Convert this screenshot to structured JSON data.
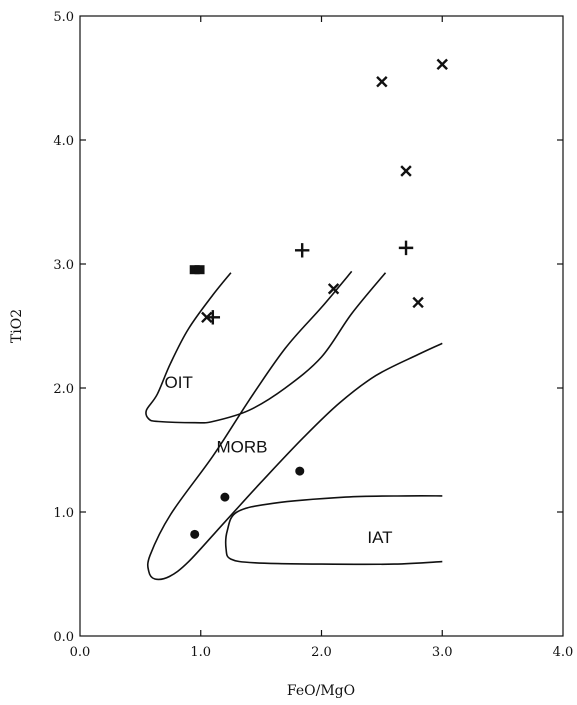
{
  "chart_data": {
    "type": "scatter",
    "title": "",
    "xlabel": "FeO/MgO",
    "ylabel": "TiO2",
    "xlim": [
      0,
      4
    ],
    "ylim": [
      0,
      5
    ],
    "x_ticks": [
      "0.0",
      "1.0",
      "2.0",
      "3.0",
      "4.0"
    ],
    "y_ticks": [
      "0.0",
      "1.0",
      "2.0",
      "3.0",
      "4.0",
      "5.0"
    ],
    "grid": false,
    "series": [
      {
        "marker": "square",
        "points": [
          [
            0.95,
            2.95
          ],
          [
            0.99,
            2.95
          ]
        ]
      },
      {
        "marker": "plus",
        "points": [
          [
            1.1,
            2.57
          ],
          [
            1.84,
            3.11
          ],
          [
            2.7,
            3.13
          ]
        ]
      },
      {
        "marker": "x",
        "points": [
          [
            1.05,
            2.57
          ],
          [
            2.1,
            2.8
          ],
          [
            2.5,
            4.47
          ],
          [
            2.7,
            3.75
          ],
          [
            2.8,
            2.69
          ],
          [
            3.0,
            4.61
          ]
        ]
      },
      {
        "marker": "circle",
        "points": [
          [
            0.95,
            0.82
          ],
          [
            1.2,
            1.12
          ],
          [
            1.82,
            1.33
          ]
        ]
      }
    ],
    "regions": [
      {
        "label": "OIT",
        "label_at": [
          0.7,
          2.0
        ],
        "outline": [
          [
            1.25,
            2.93
          ],
          [
            1.1,
            2.75
          ],
          [
            0.9,
            2.48
          ],
          [
            0.75,
            2.2
          ],
          [
            0.64,
            1.95
          ],
          [
            0.55,
            1.82
          ],
          [
            0.57,
            1.75
          ],
          [
            0.65,
            1.73
          ],
          [
            0.95,
            1.72
          ],
          [
            1.1,
            1.73
          ],
          [
            1.4,
            1.82
          ],
          [
            1.7,
            2.0
          ],
          [
            2.0,
            2.25
          ],
          [
            2.25,
            2.6
          ],
          [
            2.53,
            2.93
          ]
        ]
      },
      {
        "label": "MORB",
        "label_at": [
          1.13,
          1.48
        ],
        "outline": [
          [
            2.25,
            2.94
          ],
          [
            2.0,
            2.65
          ],
          [
            1.7,
            2.32
          ],
          [
            1.4,
            1.9
          ],
          [
            1.1,
            1.45
          ],
          [
            0.75,
            0.98
          ],
          [
            0.58,
            0.65
          ],
          [
            0.57,
            0.52
          ],
          [
            0.62,
            0.46
          ],
          [
            0.74,
            0.48
          ],
          [
            0.9,
            0.6
          ],
          [
            1.2,
            0.92
          ],
          [
            1.5,
            1.24
          ],
          [
            1.85,
            1.6
          ],
          [
            2.15,
            1.88
          ],
          [
            2.45,
            2.1
          ],
          [
            2.8,
            2.27
          ],
          [
            3.0,
            2.36
          ]
        ]
      },
      {
        "label": "IAT",
        "label_at": [
          2.38,
          0.75
        ],
        "outline": [
          [
            3.0,
            1.13
          ],
          [
            2.7,
            1.13
          ],
          [
            2.2,
            1.12
          ],
          [
            1.6,
            1.07
          ],
          [
            1.3,
            1.0
          ],
          [
            1.22,
            0.85
          ],
          [
            1.21,
            0.7
          ],
          [
            1.25,
            0.62
          ],
          [
            1.45,
            0.59
          ],
          [
            2.0,
            0.58
          ],
          [
            2.6,
            0.58
          ],
          [
            3.0,
            0.6
          ]
        ]
      }
    ]
  }
}
